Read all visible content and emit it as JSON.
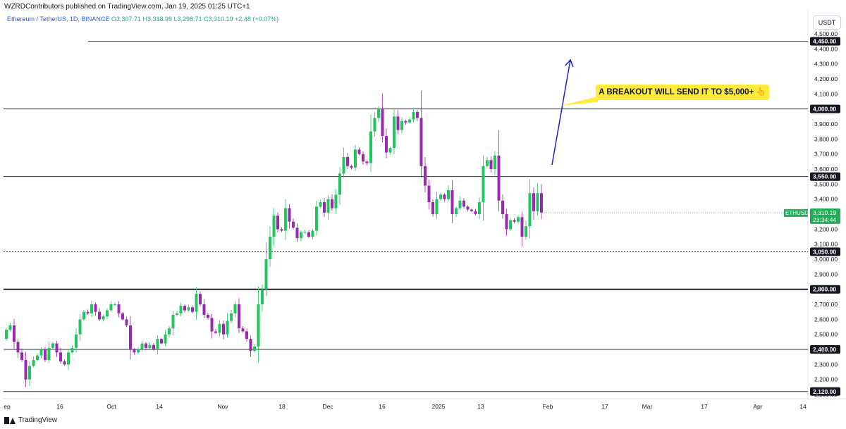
{
  "header": {
    "publisher_line": "WZRDContributors published on TradingView.com, Jan 19, 2025 01:25 UTC+1",
    "symbol": "Ethereum / TetherUS, 1D, BINANCE",
    "ohlc": "O3,307.71  H3,318.99  L3,298.71  C3,310.19  +2.48 (+0.07%)"
  },
  "currency_button": "USDT",
  "brand": "TradingView",
  "annotation": {
    "text": "A BREAKOUT WILL SEND IT TO $5,000+",
    "icon": "pointing-up-emoji"
  },
  "colors": {
    "up": "#22c55e",
    "down": "#9c27b0",
    "arrow": "#1e22c8",
    "callout": "#ffeb3b",
    "price_tag": "#22ab59"
  },
  "chart_data": {
    "type": "candlestick",
    "ylim": [
      2100,
      4550
    ],
    "y_ticks": [
      "4,500.00",
      "4,400.00",
      "4,300.00",
      "4,200.00",
      "4,100.00",
      "4,000.00",
      "3,900.00",
      "3,800.00",
      "3,700.00",
      "3,600.00",
      "3,500.00",
      "3,400.00",
      "3,300.00",
      "3,200.00",
      "3,100.00",
      "3,000.00",
      "2,900.00",
      "2,800.00",
      "2,700.00",
      "2,600.00",
      "2,500.00",
      "2,400.00",
      "2,300.00",
      "2,200.00",
      "2,100.00"
    ],
    "x_ticks": [
      "ep",
      "16",
      "Oct",
      "14",
      "Nov",
      "18",
      "Dec",
      "16",
      "2025",
      "13",
      "Feb",
      "17",
      "Mar",
      "17",
      "Apr",
      "14"
    ],
    "levels": [
      {
        "label": "4,450.00",
        "style": "solid"
      },
      {
        "label": "4,000.00",
        "style": "solid"
      },
      {
        "label": "3,550.00",
        "style": "solid"
      },
      {
        "label": "3,050.00",
        "style": "dotted"
      },
      {
        "label": "2,800.00",
        "style": "bold"
      },
      {
        "label": "2,400.00",
        "style": "solid"
      },
      {
        "label": "2,120.00",
        "style": "solid"
      }
    ],
    "last_price": {
      "symbol": "ETHUSDT",
      "price": "3,310.19",
      "countdown": "23:34:44"
    },
    "closes": [
      2530,
      2560,
      2450,
      2380,
      2330,
      2200,
      2290,
      2330,
      2360,
      2400,
      2330,
      2410,
      2440,
      2380,
      2320,
      2300,
      2380,
      2410,
      2500,
      2600,
      2650,
      2640,
      2700,
      2650,
      2600,
      2620,
      2660,
      2700,
      2700,
      2640,
      2600,
      2560,
      2400,
      2380,
      2400,
      2440,
      2410,
      2430,
      2400,
      2470,
      2440,
      2500,
      2540,
      2630,
      2640,
      2690,
      2660,
      2680,
      2650,
      2770,
      2700,
      2630,
      2610,
      2520,
      2510,
      2570,
      2500,
      2590,
      2640,
      2700,
      2540,
      2520,
      2470,
      2390,
      2420,
      2700,
      2800,
      3000,
      3150,
      3290,
      3200,
      3190,
      3340,
      3250,
      3210,
      3140,
      3180,
      3180,
      3150,
      3190,
      3350,
      3380,
      3310,
      3400,
      3340,
      3430,
      3570,
      3680,
      3620,
      3610,
      3730,
      3700,
      3650,
      3640,
      3850,
      3940,
      4000,
      3820,
      3710,
      3740,
      3950,
      3860,
      3920,
      3910,
      3930,
      3980,
      3940,
      3620,
      3490,
      3380,
      3300,
      3400,
      3430,
      3400,
      3460,
      3300,
      3340,
      3390,
      3350,
      3330,
      3320,
      3300,
      3380,
      3620,
      3660,
      3600,
      3690,
      3390,
      3300,
      3200,
      3260,
      3250,
      3280,
      3150,
      3220,
      3440,
      3320,
      3440,
      3310.19
    ]
  }
}
